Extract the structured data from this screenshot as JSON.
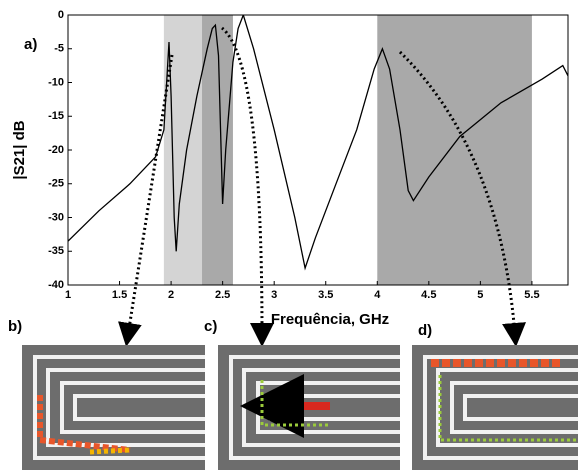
{
  "chart_data": {
    "type": "line",
    "panel_labels": [
      "a)",
      "b)",
      "c)",
      "d)"
    ],
    "y_label": "|S21| dB",
    "x_label": "Frequência, GHz",
    "x": [
      1.0,
      1.3,
      1.6,
      1.85,
      1.93,
      1.98,
      2.0,
      2.03,
      2.05,
      2.08,
      2.15,
      2.25,
      2.35,
      2.4,
      2.43,
      2.46,
      2.5,
      2.53,
      2.6,
      2.65,
      2.7,
      2.8,
      3.0,
      3.2,
      3.3,
      3.4,
      3.6,
      3.8,
      3.97,
      4.05,
      4.12,
      4.22,
      4.3,
      4.35,
      4.5,
      4.8,
      5.2,
      5.6,
      5.8,
      5.85
    ],
    "values": [
      -33.5,
      -29,
      -25,
      -21,
      -17,
      -4,
      -12,
      -30,
      -35,
      -28,
      -20,
      -12,
      -5,
      -2,
      -1.5,
      -6,
      -28,
      -20,
      -7,
      -2,
      0,
      -5,
      -17,
      -30,
      -37.5,
      -33,
      -25,
      -17,
      -8,
      -5,
      -8,
      -17,
      -26,
      -27.5,
      -24,
      -18,
      -13,
      -9.5,
      -7.5,
      -9
    ],
    "color": "#000000",
    "bands": [
      {
        "from": 1.93,
        "to": 2.3,
        "color": "#d4d4d4"
      },
      {
        "from": 2.3,
        "to": 2.6,
        "color": "#a9a9a9"
      },
      {
        "from": 4.0,
        "to": 5.5,
        "color": "#a9a9a9"
      }
    ],
    "xlim": [
      1,
      5.85
    ],
    "ylim": [
      -40,
      0
    ],
    "xticks": [
      1,
      1.5,
      2,
      2.5,
      3,
      3.5,
      4,
      4.5,
      5,
      5.5
    ],
    "yticks": [
      0,
      -5,
      -10,
      -15,
      -20,
      -25,
      -30,
      -35,
      -40
    ]
  }
}
